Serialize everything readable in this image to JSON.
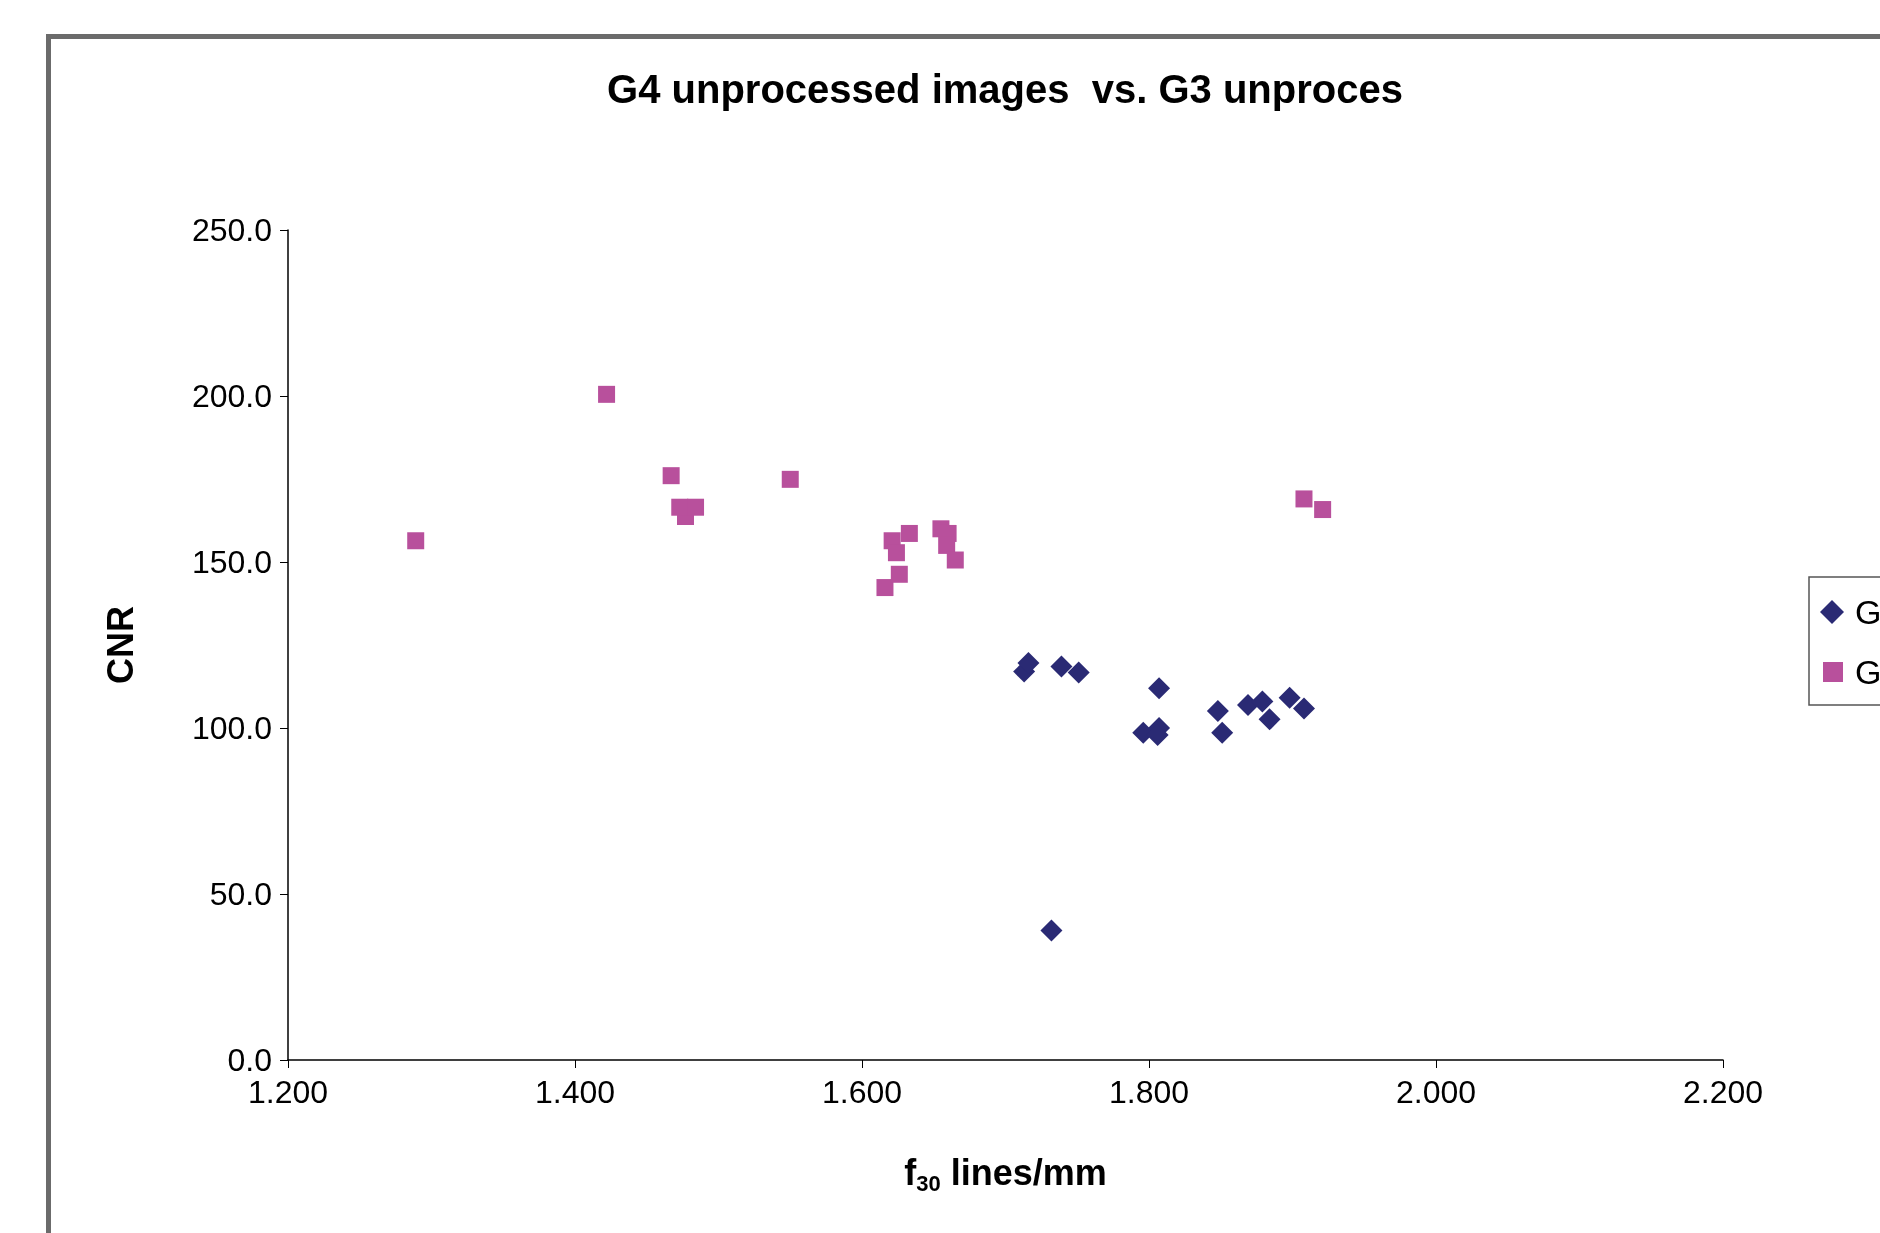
{
  "chart_data": {
    "type": "scatter",
    "title": "G4 unprocessed images  vs. G3 unproces",
    "xlabel": "f$_{30}$ lines/mm",
    "ylabel": "CNR",
    "xlim": [
      1.2,
      2.2
    ],
    "ylim": [
      0,
      250
    ],
    "xticks": [
      {
        "value": 1.2,
        "label": "1.200"
      },
      {
        "value": 1.4,
        "label": "1.400"
      },
      {
        "value": 1.6,
        "label": "1.600"
      },
      {
        "value": 1.8,
        "label": "1.800"
      },
      {
        "value": 2.0,
        "label": "2.000"
      },
      {
        "value": 2.2,
        "label": "2.200"
      }
    ],
    "yticks": [
      {
        "value": 0,
        "label": "0.0"
      },
      {
        "value": 50,
        "label": "50.0"
      },
      {
        "value": 100,
        "label": "100.0"
      },
      {
        "value": 150,
        "label": "150.0"
      },
      {
        "value": 200,
        "label": "200.0"
      },
      {
        "value": 250,
        "label": "250.0"
      }
    ],
    "grid": false,
    "legend": "right",
    "series": [
      {
        "name": "G",
        "color": "#2a2a74",
        "marker": "diamond",
        "x": [
          1.713,
          1.716,
          1.739,
          1.751,
          1.807,
          1.796,
          1.807,
          1.806,
          1.848,
          1.851,
          1.869,
          1.879,
          1.884,
          1.898,
          1.908,
          1.732
        ],
        "values": [
          117,
          119.6,
          118.5,
          116.7,
          112,
          98.6,
          100,
          97.9,
          105.1,
          98.6,
          106.9,
          108,
          102.6,
          109.1,
          105.9,
          39
        ]
      },
      {
        "name": "G",
        "color": "#b8509c",
        "marker": "square",
        "x": [
          1.289,
          1.422,
          1.467,
          1.55,
          1.477,
          1.473,
          1.484,
          1.616,
          1.621,
          1.624,
          1.626,
          1.633,
          1.655,
          1.66,
          1.659,
          1.665,
          1.908,
          1.921
        ],
        "values": [
          156.4,
          200.5,
          176,
          174.9,
          163.7,
          166.5,
          166.5,
          142.3,
          156.4,
          152.8,
          146.3,
          158.6,
          160,
          158.6,
          155,
          150.6,
          169,
          165.8
        ]
      }
    ]
  }
}
